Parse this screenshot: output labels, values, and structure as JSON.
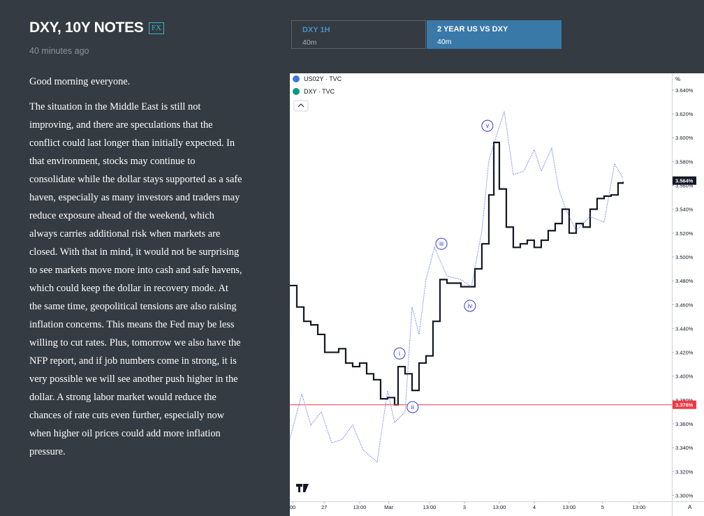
{
  "header": {
    "title": "DXY, 10Y NOTES",
    "badge": "FX",
    "time": "40 minutes ago"
  },
  "tabs": [
    {
      "title": "DXY 1H",
      "sub": "40m"
    },
    {
      "title": "2 YEAR US VS DXY",
      "sub": "40m"
    }
  ],
  "article": [
    "Good morning everyone.",
    "The situation in the Middle East is still not improving, and there are speculations that the conflict could last longer than initially expected. In that environment, stocks may continue to consolidate while the dollar stays supported as a safe haven, especially as many investors and traders may reduce exposure ahead of the weekend, which always carries additional risk when markets are closed. With that in mind, it would not be surprising to see markets move more into cash and safe havens, which could keep the dollar in recovery mode. At the same time, geopolitical tensions are also raising inflation concerns. This means the Fed may be less willing to cut rates. Plus, tomorrow we also have the NFP report, and if job numbers come in strong, it is very possible we will see another push higher in the dollar. A strong labor market would reduce the chances of rate cuts even further, especially now when higher oil prices could add more inflation pressure."
  ],
  "chart_data": {
    "type": "line",
    "axis_unit": "%",
    "corner_label": "A",
    "xlim": [
      0,
      131.3
    ],
    "xticks": [
      {
        "value": 1,
        "label": "00"
      },
      {
        "value": 11.8,
        "label": "27"
      },
      {
        "value": 24,
        "label": "13:00"
      },
      {
        "value": 34,
        "label": "Mar"
      },
      {
        "value": 48,
        "label": "13:00"
      },
      {
        "value": 60,
        "label": "3"
      },
      {
        "value": 72,
        "label": "13:00"
      },
      {
        "value": 84,
        "label": "4"
      },
      {
        "value": 96,
        "label": "13:00"
      },
      {
        "value": 107.5,
        "label": "5"
      },
      {
        "value": 120,
        "label": "13:00"
      }
    ],
    "ylim": [
      3.295,
      3.654
    ],
    "yticks": [
      {
        "value": 3.3,
        "label": "3.300%"
      },
      {
        "value": 3.32,
        "label": "3.320%"
      },
      {
        "value": 3.34,
        "label": "3.340%"
      },
      {
        "value": 3.36,
        "label": "3.360%"
      },
      {
        "value": 3.38,
        "label": "3.380%"
      },
      {
        "value": 3.4,
        "label": "3.400%"
      },
      {
        "value": 3.42,
        "label": "3.420%"
      },
      {
        "value": 3.44,
        "label": "3.440%"
      },
      {
        "value": 3.46,
        "label": "3.460%"
      },
      {
        "value": 3.48,
        "label": "3.480%"
      },
      {
        "value": 3.5,
        "label": "3.500%"
      },
      {
        "value": 3.52,
        "label": "3.520%"
      },
      {
        "value": 3.54,
        "label": "3.540%"
      },
      {
        "value": 3.56,
        "label": "3.560%"
      },
      {
        "value": 3.58,
        "label": "3.580%"
      },
      {
        "value": 3.6,
        "label": "3.600%"
      },
      {
        "value": 3.62,
        "label": "3.620%"
      },
      {
        "value": 3.64,
        "label": "3.640%"
      }
    ],
    "series": [
      {
        "name": "US02Y · TVC",
        "color": "#131722",
        "style": "step",
        "x": [
          0,
          2.4,
          4.8,
          7.2,
          9.6,
          12,
          14.4,
          16.8,
          19.2,
          21.6,
          24,
          26.4,
          28.8,
          31.2,
          33.6,
          36,
          37.2,
          39.6,
          42,
          44.4,
          46.8,
          49.2,
          51.6,
          54,
          56.4,
          58.8,
          61.2,
          63.6,
          66,
          68.4,
          70.1,
          72,
          74.4,
          76.8,
          79.2,
          81.6,
          84,
          86.4,
          88.8,
          91.2,
          93.6,
          96,
          98.4,
          100.8,
          103.2,
          105.6,
          108,
          110.4,
          112.8,
          114.5
        ],
        "values": [
          3.476,
          3.458,
          3.446,
          3.443,
          3.435,
          3.42,
          3.42,
          3.423,
          3.411,
          3.408,
          3.411,
          3.402,
          3.397,
          3.381,
          3.382,
          3.376,
          3.408,
          3.402,
          3.388,
          3.411,
          3.417,
          3.446,
          3.481,
          3.478,
          3.478,
          3.475,
          3.475,
          3.49,
          3.511,
          3.552,
          3.596,
          3.557,
          3.525,
          3.508,
          3.511,
          3.514,
          3.508,
          3.514,
          3.522,
          3.528,
          3.54,
          3.52,
          3.528,
          3.525,
          3.54,
          3.549,
          3.551,
          3.552,
          3.562,
          3.563
        ]
      },
      {
        "name": "DXY · TVC",
        "color": "#3b4ef5",
        "style": "dotted",
        "x": [
          0,
          4.1,
          7.2,
          10.8,
          14.4,
          18,
          21.6,
          25.2,
          30,
          33.6,
          36,
          39.6,
          42,
          44.4,
          46.8,
          49.7,
          54,
          58.8,
          62.4,
          66,
          68.4,
          71.3,
          73.7,
          76.8,
          80.4,
          84,
          86.4,
          90,
          92.4,
          94.8,
          98.4,
          103.2,
          108,
          111.6,
          114.5
        ],
        "values": [
          3.347,
          3.385,
          3.359,
          3.37,
          3.344,
          3.347,
          3.359,
          3.338,
          3.328,
          3.388,
          3.361,
          3.37,
          3.458,
          3.435,
          3.481,
          3.508,
          3.484,
          3.481,
          3.475,
          3.522,
          3.581,
          3.604,
          3.622,
          3.569,
          3.572,
          3.59,
          3.572,
          3.591,
          3.557,
          3.54,
          3.522,
          3.534,
          3.529,
          3.578,
          3.566
        ]
      }
    ],
    "last_price": {
      "value": 3.564,
      "label": "3.564%"
    },
    "horizontal_line": {
      "value": 3.376,
      "label": "3.376%",
      "color": "#f23645"
    },
    "annotations": [
      {
        "text": "v",
        "x": 67.9,
        "y": 3.61
      },
      {
        "text": "iii",
        "x": 52.1,
        "y": 3.511
      },
      {
        "text": "iv",
        "x": 61.9,
        "y": 3.459
      },
      {
        "text": "i",
        "x": 37.7,
        "y": 3.419
      },
      {
        "text": "ii",
        "x": 42.2,
        "y": 3.374
      }
    ]
  }
}
